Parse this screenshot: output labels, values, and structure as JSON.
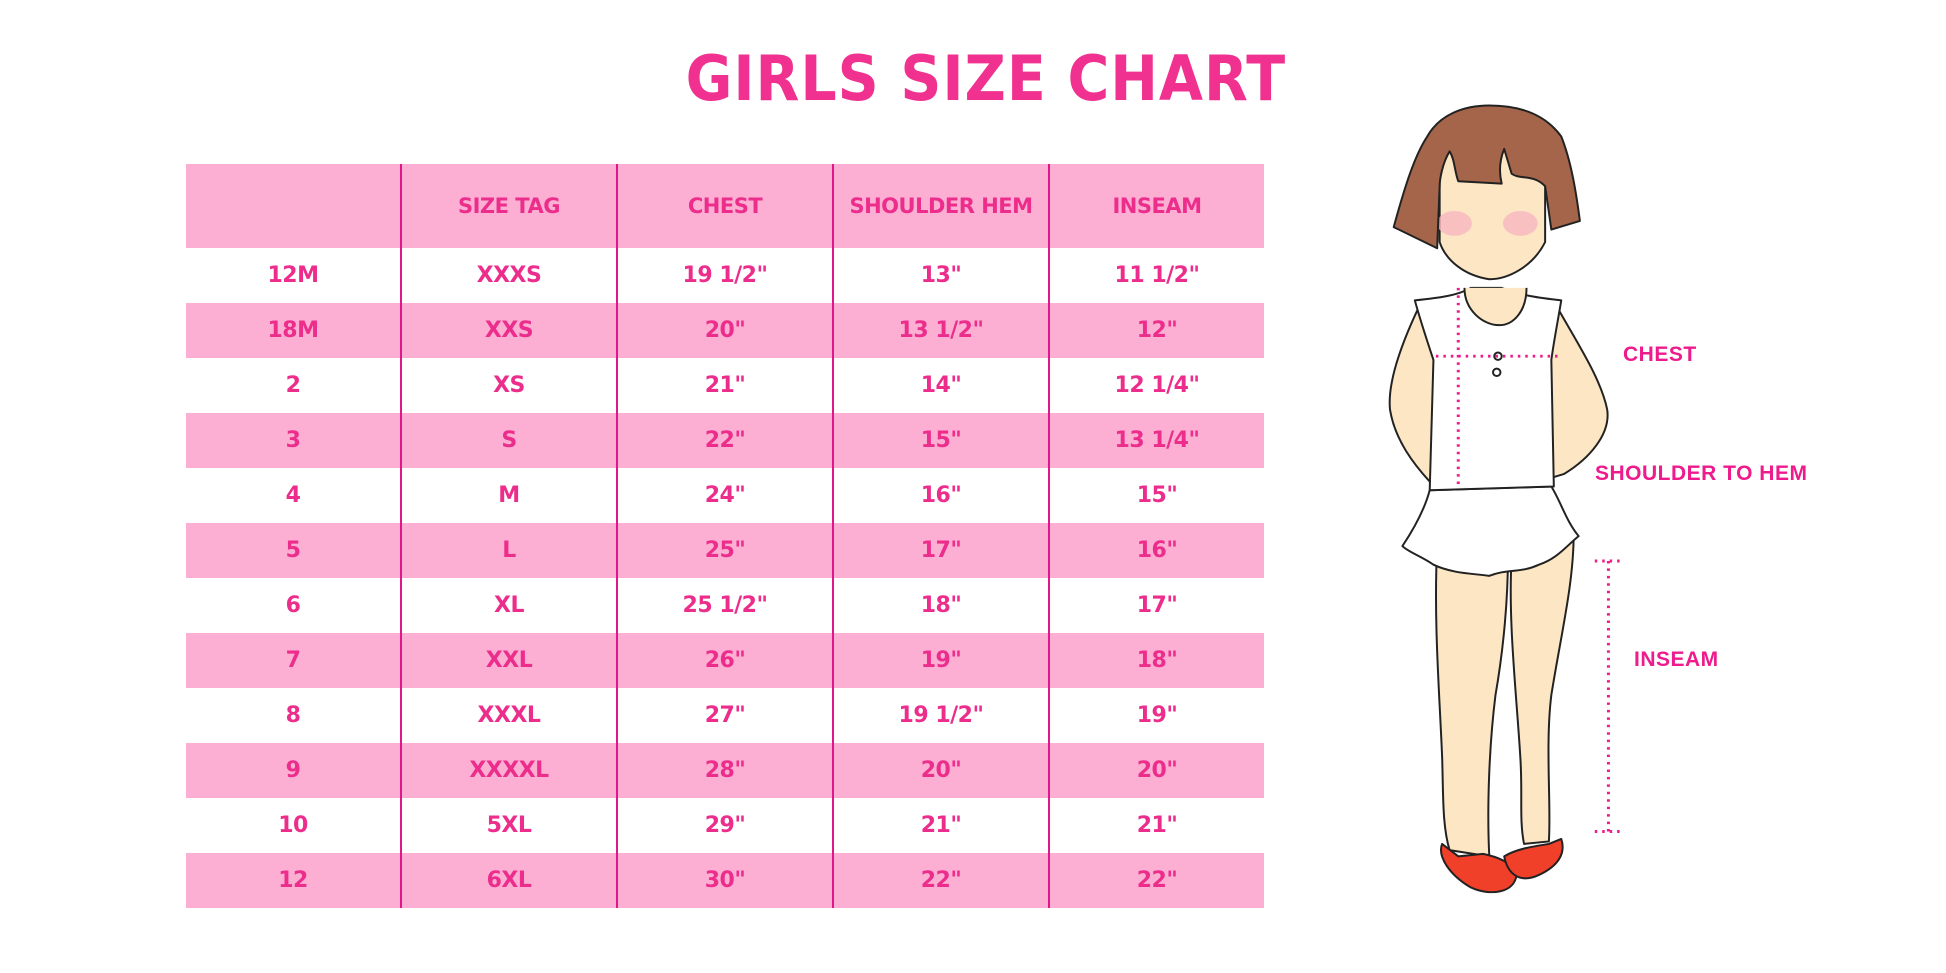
{
  "title": "GIRLS SIZE CHART",
  "table": {
    "headers": [
      "",
      "SIZE TAG",
      "CHEST",
      "SHOULDER HEM",
      "INSEAM"
    ],
    "rows": [
      [
        "12M",
        "XXXS",
        "19 1/2\"",
        "13\"",
        "11 1/2\""
      ],
      [
        "18M",
        "XXS",
        "20\"",
        "13 1/2\"",
        "12\""
      ],
      [
        "2",
        "XS",
        "21\"",
        "14\"",
        "12 1/4\""
      ],
      [
        "3",
        "S",
        "22\"",
        "15\"",
        "13 1/4\""
      ],
      [
        "4",
        "M",
        "24\"",
        "16\"",
        "15\""
      ],
      [
        "5",
        "L",
        "25\"",
        "17\"",
        "16\""
      ],
      [
        "6",
        "XL",
        "25 1/2\"",
        "18\"",
        "17\""
      ],
      [
        "7",
        "XXL",
        "26\"",
        "19\"",
        "18\""
      ],
      [
        "8",
        "XXXL",
        "27\"",
        "19 1/2\"",
        "19\""
      ],
      [
        "9",
        "XXXXL",
        "28\"",
        "20\"",
        "20\""
      ],
      [
        "10",
        "5XL",
        "29\"",
        "21\"",
        "21\""
      ],
      [
        "12",
        "6XL",
        "30\"",
        "22\"",
        "22\""
      ]
    ]
  },
  "figure": {
    "labels": {
      "chest": "CHEST",
      "shoulder_to_hem": "SHOULDER TO HEM",
      "inseam": "INSEAM"
    }
  },
  "colors": {
    "accent": "#ec2d8c",
    "row_pink": "#fcafd3",
    "divider": "#e0168a",
    "hair": "#a5654a",
    "skin": "#fde6c4",
    "shoes": "#f0402a"
  }
}
